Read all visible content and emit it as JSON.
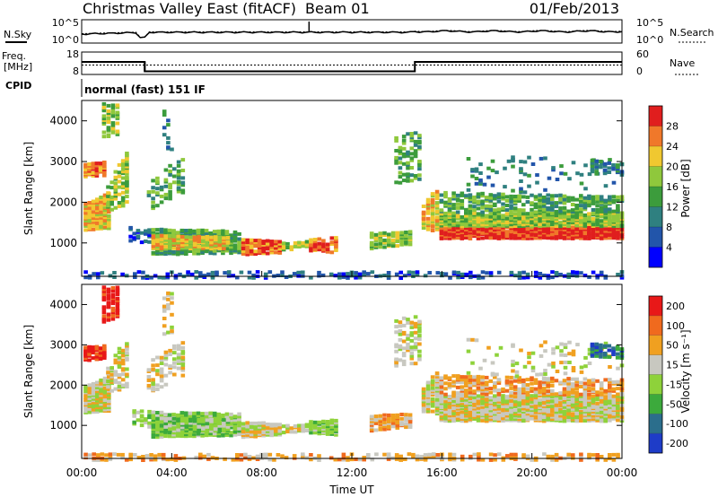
{
  "header": {
    "title": "Christmas Valley East (fitACF)",
    "beam": "Beam 01",
    "date": "01/Feb/2013"
  },
  "nsky": {
    "left_label": "N.Sky",
    "right_label": "N.Search",
    "left_ticks": [
      "10^5",
      "10^0"
    ],
    "right_ticks": [
      "10^5",
      "10^0"
    ]
  },
  "freq": {
    "left_label_1": "Freq.",
    "left_label_2": "[MHz]",
    "right_label": "Nave",
    "left_ticks": [
      "18",
      "8"
    ],
    "right_ticks": [
      "60",
      "0"
    ]
  },
  "cpid": {
    "label": "CPID",
    "text": "normal (fast) 151 IF"
  },
  "chart_data": [
    {
      "type": "heatmap",
      "name": "Power",
      "ylabel": "Slant Range [km]",
      "yticks": [
        "4000",
        "3000",
        "2000",
        "1000"
      ],
      "ylim": [
        180,
        4500
      ],
      "xlim": [
        0,
        24
      ],
      "colorbar_label": "Power [dB]",
      "colorbar_ticks": [
        "28",
        "24",
        "20",
        "16",
        "12",
        "8",
        "4"
      ],
      "colors": [
        "#0000ff",
        "#2255aa",
        "#2f8080",
        "#3c9c3c",
        "#8fc83c",
        "#f0c830",
        "#f0782a",
        "#e01e1e"
      ]
    },
    {
      "type": "heatmap",
      "name": "Velocity",
      "ylabel": "Slant Range [km]",
      "yticks": [
        "4000",
        "3000",
        "2000",
        "1000"
      ],
      "ylim": [
        180,
        4500
      ],
      "xlim": [
        0,
        24
      ],
      "colorbar_label": "Velocity [m s⁻¹]",
      "colorbar_ticks": [
        "200",
        "100",
        "50",
        "15",
        "-15",
        "-50",
        "-100",
        "-200"
      ],
      "colors": [
        "#1e3cc8",
        "#2b6e8c",
        "#3caa3c",
        "#8ed23a",
        "#c8c8c0",
        "#f0a020",
        "#f06a1e",
        "#e81818"
      ]
    }
  ],
  "xaxis": {
    "ticks": [
      "00:00",
      "04:00",
      "08:00",
      "12:00",
      "16:00",
      "20:00",
      "00:00"
    ],
    "label": "Time UT"
  }
}
